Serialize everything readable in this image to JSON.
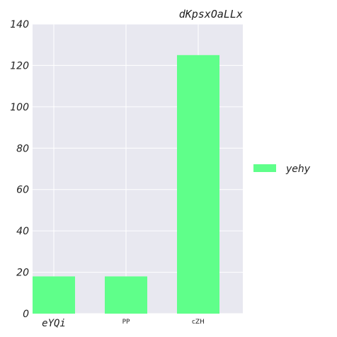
{
  "chart_data": {
    "type": "bar",
    "title": "dKpsxOaLLx",
    "categories": [
      "eYQi",
      "PP",
      "cZH"
    ],
    "series": [
      {
        "name": "yehy",
        "values": [
          18,
          18,
          125
        ],
        "color": "#5fff8a"
      }
    ],
    "xlabel": "",
    "ylabel": "",
    "ylim": [
      0,
      140
    ],
    "yticks": [
      0,
      20,
      40,
      60,
      80,
      100,
      120,
      140
    ],
    "grid": true,
    "legend_position": "right",
    "background": "#e8e8f0",
    "grid_color": "#ffffff"
  }
}
